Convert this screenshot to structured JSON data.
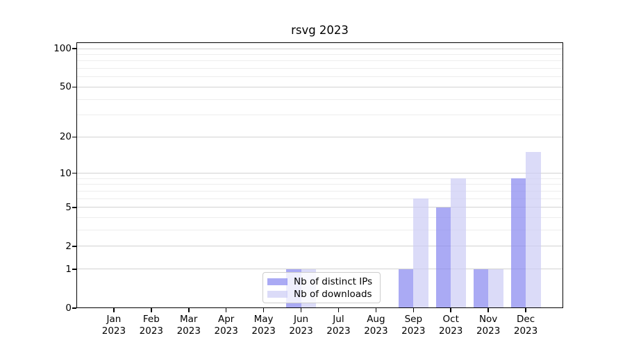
{
  "chart_data": {
    "type": "bar",
    "title": "rsvg 2023",
    "categories": [
      "Jan",
      "Feb",
      "Mar",
      "Apr",
      "May",
      "Jun",
      "Jul",
      "Aug",
      "Sep",
      "Oct",
      "Nov",
      "Dec"
    ],
    "x_year_label": "2023",
    "series": [
      {
        "name": "Nb of distinct IPs",
        "color": "rgba(134,134,239,0.7)",
        "values": [
          0,
          0,
          0,
          0,
          0,
          1,
          0,
          0,
          1,
          5,
          1,
          9
        ]
      },
      {
        "name": "Nb of downloads",
        "color": "rgba(204,204,245,0.7)",
        "values": [
          0,
          0,
          0,
          0,
          0,
          1,
          0,
          0,
          6,
          9,
          1,
          15
        ]
      }
    ],
    "y_scale": "log1p",
    "y_major_ticks": [
      0,
      1,
      2,
      5,
      10,
      20,
      50,
      100
    ],
    "y_minor_ticks": [
      3,
      4,
      6,
      7,
      8,
      9,
      30,
      40,
      60,
      70,
      80,
      90
    ],
    "ylim": [
      0,
      112
    ],
    "xlabel": "",
    "ylabel": "",
    "grid": true,
    "legend_position": "lower-center"
  },
  "legend": {
    "items": [
      {
        "label": "Nb of distinct IPs"
      },
      {
        "label": "Nb of downloads"
      }
    ]
  },
  "colors": {
    "background": "#ffffff",
    "spine": "#000000",
    "major_grid": "#d2d2d2",
    "minor_grid": "#ededed",
    "bar_distinct_ips": "rgba(134,134,239,0.7)",
    "bar_downloads": "rgba(204,204,245,0.7)",
    "legend_border": "#cccccc",
    "legend_background": "rgba(255,255,255,0.8)",
    "text": "#000000"
  }
}
